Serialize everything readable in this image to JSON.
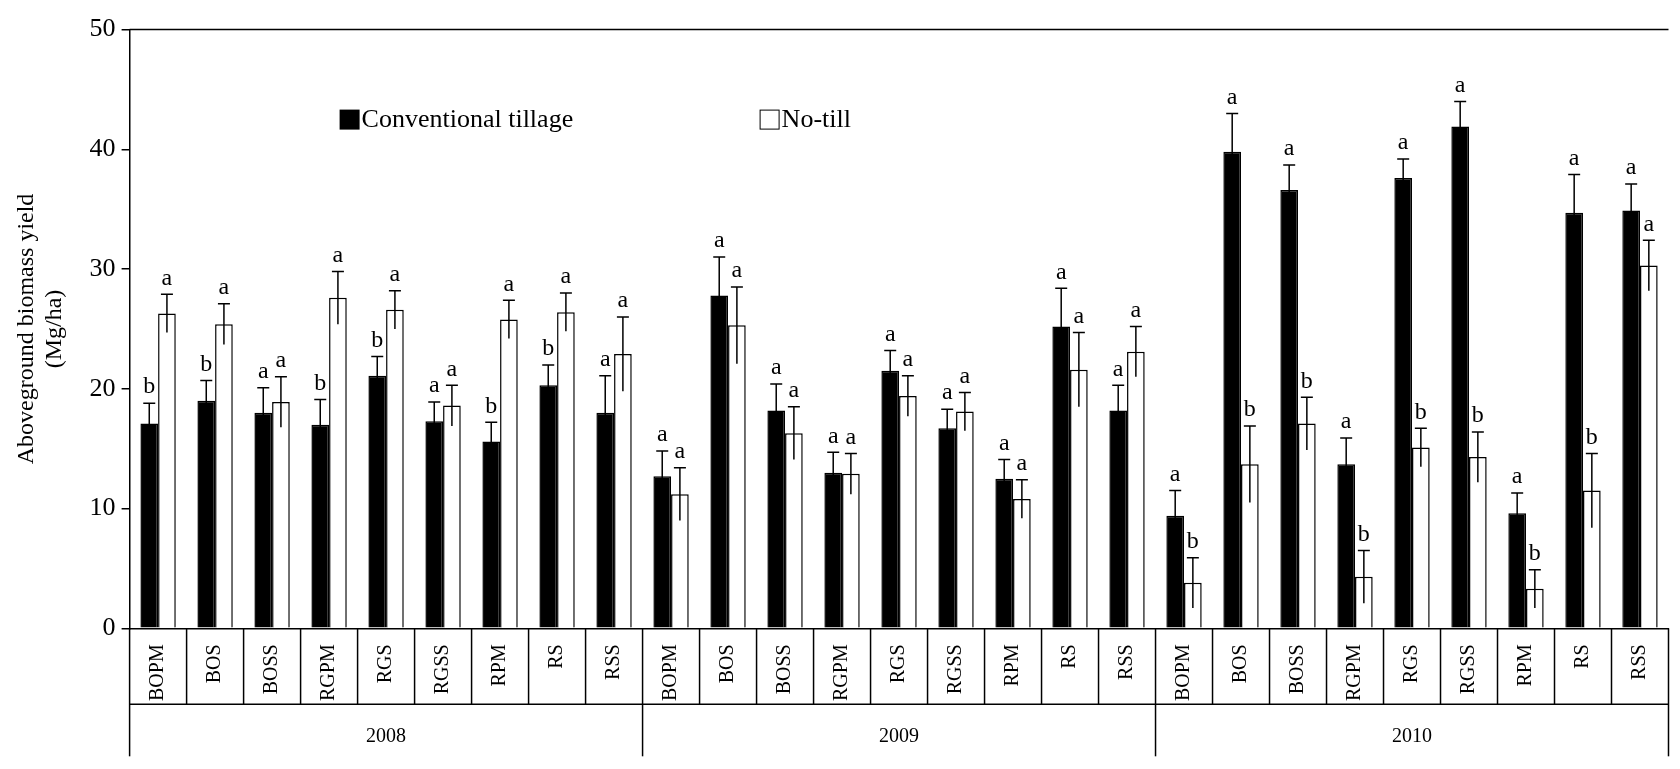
{
  "chart_data": {
    "type": "bar",
    "ylabel": "Aboveground biomass yield\n(Mg/ha)",
    "categories": [
      "BOPM",
      "BOS",
      "BOSS",
      "RGPM",
      "RGS",
      "RGSS",
      "RPM",
      "RS",
      "RSS",
      "BOPM",
      "BOS",
      "BOSS",
      "RGPM",
      "RGS",
      "RGSS",
      "RPM",
      "RS",
      "RSS",
      "BOPM",
      "BOS",
      "BOSS",
      "RGPM",
      "RGS",
      "RGSS",
      "RPM",
      "RS",
      "RSS"
    ],
    "series": [
      {
        "name": "Conventional tillage",
        "color": "#000000",
        "values": [
          17.1,
          19.0,
          18.0,
          17.0,
          21.1,
          17.3,
          15.6,
          20.3,
          18.0,
          12.7,
          27.8,
          18.2,
          13.0,
          21.5,
          16.7,
          12.5,
          25.2,
          18.2,
          9.4,
          39.8,
          36.6,
          13.7,
          37.6,
          41.9,
          9.6,
          34.7,
          34.9
        ],
        "errors": [
          1.7,
          1.7,
          2.1,
          2.1,
          1.6,
          1.6,
          1.6,
          1.7,
          3.1,
          2.1,
          3.2,
          2.2,
          1.7,
          1.7,
          1.6,
          1.6,
          3.2,
          2.1,
          2.1,
          3.2,
          2.1,
          2.2,
          1.6,
          2.1,
          1.7,
          3.2,
          2.2
        ],
        "value_labels": [
          "b",
          "b",
          "a",
          "b",
          "b",
          "a",
          "b",
          "b",
          "a",
          "a",
          "a",
          "a",
          "a",
          "a",
          "a",
          "a",
          "a",
          "a",
          "a",
          "a",
          "a",
          "a",
          "a",
          "a",
          "a",
          "a",
          "a"
        ]
      },
      {
        "name": "No-till",
        "color": "#ffffff",
        "values": [
          26.3,
          25.4,
          18.9,
          27.6,
          26.6,
          18.6,
          25.8,
          26.4,
          22.9,
          11.2,
          25.3,
          16.3,
          12.9,
          19.4,
          18.1,
          10.8,
          21.6,
          23.1,
          3.8,
          13.7,
          17.1,
          4.3,
          15.1,
          14.3,
          3.3,
          11.5,
          30.3
        ],
        "errors": [
          1.6,
          1.7,
          2.1,
          2.2,
          1.6,
          1.7,
          1.6,
          1.6,
          3.1,
          2.2,
          3.2,
          2.2,
          1.7,
          1.7,
          1.6,
          1.6,
          3.1,
          2.1,
          2.1,
          3.2,
          2.2,
          2.2,
          1.6,
          2.1,
          1.6,
          3.1,
          2.1
        ],
        "value_labels": [
          "a",
          "a",
          "a",
          "a",
          "a",
          "a",
          "a",
          "a",
          "a",
          "a",
          "a",
          "a",
          "a",
          "a",
          "a",
          "a",
          "a",
          "a",
          "b",
          "b",
          "b",
          "b",
          "b",
          "b",
          "b",
          "b",
          "a"
        ]
      }
    ],
    "ylim": [
      0,
      50
    ],
    "yticks": [
      0,
      10,
      20,
      30,
      40,
      50
    ],
    "grid": false,
    "legend": "top",
    "annotations": [
      "2008",
      "2009",
      "2010"
    ]
  }
}
